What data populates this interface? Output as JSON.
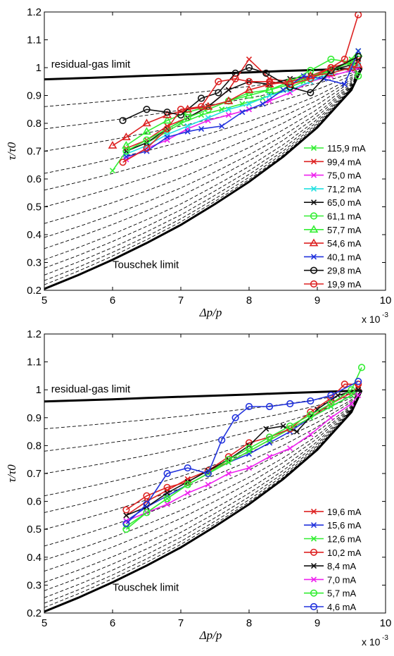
{
  "chart_data": [
    {
      "type": "line",
      "xlabel": "Δp/p",
      "ylabel": "τ/τ0",
      "x_multiplier": "x 10",
      "x_multiplier_exp": "-3",
      "xlim": [
        5,
        10
      ],
      "ylim": [
        0.2,
        1.2
      ],
      "xticks": [
        "5",
        "6",
        "7",
        "8",
        "9",
        "10"
      ],
      "yticks": [
        "0.2",
        "0.3",
        "0.4",
        "0.5",
        "0.6",
        "0.7",
        "0.8",
        "0.9",
        "1",
        "1.1",
        "1.2"
      ],
      "grid": false,
      "legend_position": "bottom-right",
      "annotations": [
        {
          "text": "residual-gas limit",
          "x": 5.1,
          "y": 1.0
        },
        {
          "text": "Touschek limit",
          "x": 6.0,
          "y": 0.28
        }
      ],
      "boundary_curves": {
        "residual_gas_limit": {
          "x": [
            5.0,
            5.5,
            6.0,
            6.5,
            7.0,
            7.5,
            8.0,
            8.5,
            9.0,
            9.5,
            9.65
          ],
          "y": [
            0.958,
            0.962,
            0.966,
            0.971,
            0.975,
            0.979,
            0.983,
            0.988,
            0.992,
            0.996,
            0.998
          ]
        },
        "touschek_limit": {
          "x": [
            5.0,
            5.5,
            6.0,
            6.5,
            7.0,
            7.5,
            8.0,
            8.5,
            9.0,
            9.5,
            9.65
          ],
          "y": [
            0.205,
            0.255,
            0.31,
            0.37,
            0.435,
            0.51,
            0.59,
            0.68,
            0.785,
            0.92,
            0.998
          ]
        },
        "intermediate_start_y": [
          0.22,
          0.235,
          0.255,
          0.28,
          0.31,
          0.35,
          0.39,
          0.44,
          0.5,
          0.56,
          0.62,
          0.7,
          0.78,
          0.86
        ]
      },
      "series": [
        {
          "name": "115,9 mA",
          "color": "#33ee33",
          "marker": "x",
          "x": [
            6.0,
            6.2,
            6.5,
            6.8,
            7.0,
            7.3,
            7.6,
            7.9,
            8.2,
            8.5,
            8.8,
            9.1,
            9.3,
            9.5,
            9.6
          ],
          "y": [
            0.63,
            0.7,
            0.73,
            0.77,
            0.8,
            0.83,
            0.85,
            0.87,
            0.89,
            0.92,
            0.95,
            0.98,
            1.0,
            1.03,
            1.06
          ]
        },
        {
          "name": "99,4 mA",
          "color": "#dd2222",
          "marker": "x",
          "x": [
            6.2,
            6.5,
            6.8,
            7.1,
            7.4,
            7.7,
            8.0,
            8.3,
            8.6,
            8.9,
            9.2,
            9.5,
            9.6
          ],
          "y": [
            0.71,
            0.74,
            0.79,
            0.82,
            0.86,
            0.92,
            1.03,
            0.96,
            0.95,
            0.97,
            1.0,
            1.02,
            1.03
          ]
        },
        {
          "name": "75,0 mA",
          "color": "#ee22ee",
          "marker": "x",
          "x": [
            6.2,
            6.5,
            6.8,
            7.1,
            7.4,
            7.7,
            8.0,
            8.3,
            8.6,
            8.9,
            9.2,
            9.5,
            9.6
          ],
          "y": [
            0.67,
            0.71,
            0.74,
            0.78,
            0.81,
            0.83,
            0.85,
            0.88,
            0.91,
            0.95,
            0.97,
            0.99,
            1.0
          ]
        },
        {
          "name": "71,2 mA",
          "color": "#22e0e0",
          "marker": "x",
          "x": [
            6.2,
            6.5,
            6.8,
            7.1,
            7.4,
            7.7,
            8.0,
            8.3,
            8.6,
            8.9,
            9.2,
            9.5,
            9.6
          ],
          "y": [
            0.69,
            0.72,
            0.76,
            0.79,
            0.82,
            0.85,
            0.87,
            0.9,
            0.92,
            0.95,
            0.98,
            1.0,
            1.01
          ]
        },
        {
          "name": "65,0 mA",
          "color": "#111111",
          "marker": "x",
          "x": [
            6.2,
            6.5,
            6.8,
            7.1,
            7.4,
            7.7,
            8.0,
            8.3,
            8.6,
            8.9,
            9.2,
            9.5,
            9.6
          ],
          "y": [
            0.7,
            0.73,
            0.78,
            0.82,
            0.86,
            0.92,
            0.95,
            0.94,
            0.96,
            0.97,
            0.99,
            1.01,
            1.02
          ]
        },
        {
          "name": "61,1 mA",
          "color": "#33ee33",
          "marker": "o",
          "x": [
            6.2,
            6.5,
            6.8,
            7.1,
            7.4,
            7.7,
            8.0,
            8.3,
            8.6,
            8.9,
            9.2,
            9.5,
            9.6
          ],
          "y": [
            0.7,
            0.74,
            0.78,
            0.82,
            0.85,
            0.88,
            0.91,
            0.92,
            0.95,
            0.99,
            1.03,
            1.02,
            0.97
          ]
        },
        {
          "name": "57,7 mA",
          "color": "#33ee33",
          "marker": "^",
          "x": [
            6.2,
            6.5,
            6.8,
            7.1,
            7.4,
            7.7,
            8.0,
            8.3,
            8.6,
            8.9,
            9.2,
            9.5,
            9.6
          ],
          "y": [
            0.72,
            0.77,
            0.81,
            0.84,
            0.86,
            0.88,
            0.9,
            0.92,
            0.94,
            0.97,
            0.99,
            1.02,
            1.05
          ]
        },
        {
          "name": "54,6 mA",
          "color": "#dd2222",
          "marker": "^",
          "x": [
            6.0,
            6.2,
            6.5,
            6.8,
            7.1,
            7.4,
            7.7,
            8.0,
            8.3,
            8.6,
            8.9,
            9.2,
            9.5,
            9.6
          ],
          "y": [
            0.72,
            0.75,
            0.8,
            0.83,
            0.85,
            0.86,
            0.88,
            0.92,
            0.94,
            0.95,
            0.97,
            0.98,
            1.0,
            1.01
          ]
        },
        {
          "name": "40,1 mA",
          "color": "#2233dd",
          "marker": "x",
          "x": [
            6.2,
            6.5,
            6.8,
            7.1,
            7.3,
            7.6,
            7.9,
            8.2,
            8.5,
            8.8,
            9.1,
            9.4,
            9.6
          ],
          "y": [
            0.68,
            0.7,
            0.75,
            0.77,
            0.78,
            0.79,
            0.84,
            0.87,
            0.92,
            0.97,
            0.96,
            0.94,
            1.06
          ]
        },
        {
          "name": "29,8 mA",
          "color": "#111111",
          "marker": "o",
          "x": [
            6.15,
            6.5,
            6.8,
            7.0,
            7.3,
            7.55,
            7.8,
            8.0,
            8.25,
            8.6,
            8.9,
            9.2,
            9.6
          ],
          "y": [
            0.81,
            0.85,
            0.84,
            0.83,
            0.89,
            0.91,
            0.98,
            1.0,
            0.98,
            0.93,
            0.91,
            0.99,
            1.04
          ]
        },
        {
          "name": "19,9 mA",
          "color": "#dd2222",
          "marker": "o",
          "x": [
            6.15,
            6.5,
            6.8,
            7.0,
            7.3,
            7.55,
            7.8,
            8.0,
            8.3,
            8.6,
            8.9,
            9.2,
            9.4,
            9.6
          ],
          "y": [
            0.66,
            0.71,
            0.78,
            0.85,
            0.86,
            0.95,
            0.96,
            0.95,
            0.95,
            0.94,
            0.96,
            1.0,
            1.03,
            1.19
          ]
        }
      ]
    },
    {
      "type": "line",
      "xlabel": "Δp/p",
      "ylabel": "τ/τ0",
      "x_multiplier": "x 10",
      "x_multiplier_exp": "-3",
      "xlim": [
        5,
        10
      ],
      "ylim": [
        0.2,
        1.2
      ],
      "xticks": [
        "5",
        "6",
        "7",
        "8",
        "9",
        "10"
      ],
      "yticks": [
        "0.2",
        "0.3",
        "0.4",
        "0.5",
        "0.6",
        "0.7",
        "0.8",
        "0.9",
        "1",
        "1.1",
        "1.2"
      ],
      "grid": false,
      "legend_position": "bottom-right",
      "annotations": [
        {
          "text": "residual-gas limit",
          "x": 5.1,
          "y": 0.99
        },
        {
          "text": "Touschek limit",
          "x": 6.0,
          "y": 0.28
        }
      ],
      "boundary_curves": {
        "residual_gas_limit": {
          "x": [
            5.0,
            5.5,
            6.0,
            6.5,
            7.0,
            7.5,
            8.0,
            8.5,
            9.0,
            9.5,
            9.65
          ],
          "y": [
            0.958,
            0.962,
            0.966,
            0.971,
            0.975,
            0.979,
            0.983,
            0.988,
            0.992,
            0.996,
            0.998
          ]
        },
        "touschek_limit": {
          "x": [
            5.0,
            5.5,
            6.0,
            6.5,
            7.0,
            7.5,
            8.0,
            8.5,
            9.0,
            9.5,
            9.65
          ],
          "y": [
            0.205,
            0.255,
            0.31,
            0.37,
            0.435,
            0.51,
            0.59,
            0.68,
            0.785,
            0.92,
            0.998
          ]
        },
        "intermediate_start_y": [
          0.22,
          0.235,
          0.255,
          0.28,
          0.31,
          0.35,
          0.39,
          0.44,
          0.5,
          0.56,
          0.62,
          0.7,
          0.78,
          0.86
        ]
      },
      "series": [
        {
          "name": "19,6 mA",
          "color": "#dd2222",
          "marker": "x",
          "x": [
            6.2,
            6.5,
            6.8,
            7.1,
            7.4,
            7.7,
            8.0,
            8.3,
            8.6,
            8.9,
            9.2,
            9.5,
            9.6
          ],
          "y": [
            0.55,
            0.6,
            0.64,
            0.68,
            0.71,
            0.74,
            0.78,
            0.82,
            0.86,
            0.9,
            0.95,
            0.99,
            1.01
          ]
        },
        {
          "name": "15,6 mA",
          "color": "#2233dd",
          "marker": "x",
          "x": [
            6.2,
            6.5,
            6.8,
            7.1,
            7.4,
            7.7,
            8.0,
            8.3,
            8.6,
            8.9,
            9.2,
            9.5,
            9.6
          ],
          "y": [
            0.53,
            0.58,
            0.62,
            0.66,
            0.7,
            0.74,
            0.77,
            0.81,
            0.85,
            0.9,
            0.94,
            0.98,
            1.0
          ]
        },
        {
          "name": "12,6 mA",
          "color": "#33ee33",
          "marker": "x",
          "x": [
            6.2,
            6.5,
            6.8,
            7.1,
            7.4,
            7.7,
            8.0,
            8.3,
            8.6,
            8.9,
            9.2,
            9.5,
            9.6
          ],
          "y": [
            0.51,
            0.56,
            0.61,
            0.66,
            0.7,
            0.74,
            0.78,
            0.82,
            0.86,
            0.9,
            0.94,
            0.98,
            1.0
          ]
        },
        {
          "name": "10,2 mA",
          "color": "#dd2222",
          "marker": "o",
          "x": [
            6.2,
            6.5,
            6.8,
            7.1,
            7.4,
            7.7,
            8.0,
            8.3,
            8.6,
            8.9,
            9.2,
            9.4,
            9.6
          ],
          "y": [
            0.57,
            0.62,
            0.65,
            0.67,
            0.71,
            0.76,
            0.81,
            0.83,
            0.86,
            0.92,
            0.97,
            1.02,
            1.02
          ]
        },
        {
          "name": "8,4 mA",
          "color": "#111111",
          "marker": "x",
          "x": [
            6.2,
            6.5,
            6.8,
            7.1,
            7.4,
            7.7,
            8.0,
            8.25,
            8.5,
            8.7,
            9.0,
            9.3,
            9.6
          ],
          "y": [
            0.55,
            0.58,
            0.63,
            0.67,
            0.71,
            0.75,
            0.8,
            0.86,
            0.87,
            0.85,
            0.93,
            0.98,
            1.0
          ]
        },
        {
          "name": "7,0 mA",
          "color": "#ee22ee",
          "marker": "x",
          "x": [
            6.2,
            6.5,
            6.8,
            7.1,
            7.4,
            7.7,
            8.0,
            8.3,
            8.6,
            8.9,
            9.2,
            9.5,
            9.6
          ],
          "y": [
            0.53,
            0.56,
            0.59,
            0.63,
            0.66,
            0.7,
            0.72,
            0.76,
            0.79,
            0.84,
            0.9,
            0.95,
            0.98
          ]
        },
        {
          "name": "5,7 mA",
          "color": "#33ee33",
          "marker": "o",
          "x": [
            6.2,
            6.5,
            6.8,
            7.1,
            7.4,
            7.7,
            8.0,
            8.3,
            8.6,
            8.9,
            9.2,
            9.5,
            9.65
          ],
          "y": [
            0.5,
            0.56,
            0.61,
            0.66,
            0.7,
            0.75,
            0.79,
            0.83,
            0.87,
            0.91,
            0.95,
            1.0,
            1.08
          ]
        },
        {
          "name": "4,6 mA",
          "color": "#2233dd",
          "marker": "o",
          "x": [
            6.2,
            6.5,
            6.8,
            7.1,
            7.4,
            7.6,
            7.8,
            8.0,
            8.3,
            8.6,
            8.9,
            9.2,
            9.6
          ],
          "y": [
            0.52,
            0.59,
            0.7,
            0.72,
            0.7,
            0.82,
            0.9,
            0.94,
            0.94,
            0.95,
            0.96,
            0.98,
            1.03
          ]
        }
      ]
    }
  ]
}
